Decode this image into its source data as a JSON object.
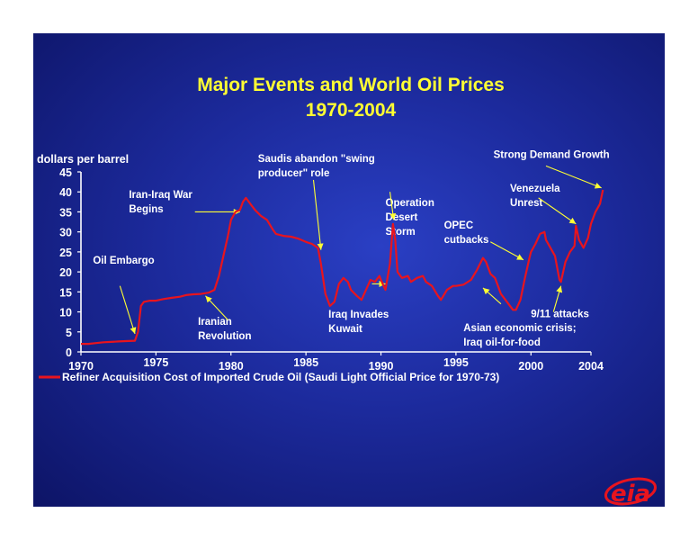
{
  "chart_data": {
    "type": "line",
    "title": "Major Events and World Oil Prices",
    "subtitle": "1970-2004",
    "ylabel": "dollars per barrel",
    "ylim": [
      0,
      45
    ],
    "yticks": [
      "0",
      "5",
      "10",
      "15",
      "20",
      "25",
      "30",
      "35",
      "40",
      "45"
    ],
    "xlim": [
      1970,
      2004
    ],
    "xticks_lower": [
      "1970",
      "1980",
      "1990",
      "2000",
      "2004"
    ],
    "xticks_upper": [
      "1975",
      "1985",
      "1995"
    ],
    "legend_position": "bottom",
    "series": [
      {
        "name": "Refiner Acquisition Cost of Imported Crude Oil (Saudi Light Official Price for 1970-73)",
        "color": "#e8141e",
        "points": [
          [
            1970.0,
            2.0
          ],
          [
            1970.5,
            2.0
          ],
          [
            1971.0,
            2.2
          ],
          [
            1971.5,
            2.4
          ],
          [
            1972.0,
            2.5
          ],
          [
            1972.5,
            2.6
          ],
          [
            1973.0,
            2.7
          ],
          [
            1973.6,
            2.8
          ],
          [
            1973.8,
            5.0
          ],
          [
            1974.0,
            11.5
          ],
          [
            1974.2,
            12.5
          ],
          [
            1974.6,
            12.8
          ],
          [
            1975.0,
            12.8
          ],
          [
            1975.5,
            13.2
          ],
          [
            1976.0,
            13.5
          ],
          [
            1976.6,
            13.8
          ],
          [
            1977.0,
            14.2
          ],
          [
            1977.5,
            14.4
          ],
          [
            1978.0,
            14.5
          ],
          [
            1978.5,
            14.8
          ],
          [
            1978.9,
            15.5
          ],
          [
            1979.2,
            19.0
          ],
          [
            1979.5,
            24.0
          ],
          [
            1979.8,
            29.0
          ],
          [
            1980.0,
            33.0
          ],
          [
            1980.3,
            35.0
          ],
          [
            1980.6,
            35.5
          ],
          [
            1980.8,
            37.5
          ],
          [
            1981.0,
            38.5
          ],
          [
            1981.3,
            37.0
          ],
          [
            1981.6,
            35.5
          ],
          [
            1982.0,
            34.0
          ],
          [
            1982.4,
            33.0
          ],
          [
            1982.8,
            30.5
          ],
          [
            1983.0,
            29.5
          ],
          [
            1983.5,
            29.0
          ],
          [
            1984.0,
            28.8
          ],
          [
            1984.5,
            28.3
          ],
          [
            1985.0,
            27.5
          ],
          [
            1985.4,
            27.0
          ],
          [
            1985.8,
            26.0
          ],
          [
            1986.0,
            22.0
          ],
          [
            1986.3,
            14.5
          ],
          [
            1986.6,
            11.5
          ],
          [
            1986.9,
            12.5
          ],
          [
            1987.2,
            17.0
          ],
          [
            1987.5,
            18.5
          ],
          [
            1987.8,
            17.5
          ],
          [
            1988.0,
            15.5
          ],
          [
            1988.4,
            14.0
          ],
          [
            1988.7,
            13.0
          ],
          [
            1989.0,
            15.5
          ],
          [
            1989.3,
            18.0
          ],
          [
            1989.6,
            17.5
          ],
          [
            1989.9,
            19.0
          ],
          [
            1990.0,
            18.0
          ],
          [
            1990.3,
            15.5
          ],
          [
            1990.6,
            22.0
          ],
          [
            1990.8,
            32.0
          ],
          [
            1990.95,
            28.0
          ],
          [
            1991.1,
            20.0
          ],
          [
            1991.4,
            18.5
          ],
          [
            1991.8,
            19.0
          ],
          [
            1992.0,
            17.5
          ],
          [
            1992.4,
            18.5
          ],
          [
            1992.8,
            19.0
          ],
          [
            1993.0,
            17.5
          ],
          [
            1993.4,
            16.5
          ],
          [
            1993.8,
            14.0
          ],
          [
            1994.0,
            13.0
          ],
          [
            1994.4,
            15.5
          ],
          [
            1994.8,
            16.5
          ],
          [
            1995.0,
            16.5
          ],
          [
            1995.5,
            16.8
          ],
          [
            1996.0,
            18.0
          ],
          [
            1996.4,
            20.5
          ],
          [
            1996.8,
            23.5
          ],
          [
            1997.0,
            22.5
          ],
          [
            1997.3,
            19.5
          ],
          [
            1997.6,
            18.5
          ],
          [
            1998.0,
            14.5
          ],
          [
            1998.4,
            12.5
          ],
          [
            1998.8,
            10.5
          ],
          [
            1999.0,
            10.5
          ],
          [
            1999.3,
            13.0
          ],
          [
            1999.6,
            18.5
          ],
          [
            1999.9,
            23.5
          ],
          [
            2000.0,
            25.0
          ],
          [
            2000.3,
            27.0
          ],
          [
            2000.6,
            29.5
          ],
          [
            2000.9,
            30.0
          ],
          [
            2001.0,
            28.0
          ],
          [
            2001.3,
            26.0
          ],
          [
            2001.6,
            24.0
          ],
          [
            2001.9,
            18.0
          ],
          [
            2002.0,
            17.5
          ],
          [
            2002.3,
            22.5
          ],
          [
            2002.6,
            25.0
          ],
          [
            2002.9,
            26.5
          ],
          [
            2003.0,
            31.5
          ],
          [
            2003.2,
            28.0
          ],
          [
            2003.5,
            26.0
          ],
          [
            2003.8,
            28.5
          ],
          [
            2004.0,
            32.0
          ],
          [
            2004.3,
            35.0
          ],
          [
            2004.6,
            37.0
          ],
          [
            2004.8,
            40.5
          ]
        ]
      }
    ],
    "annotations": [
      {
        "lines": [
          "Oil Embargo"
        ],
        "tx": 1970.8,
        "ty": 22.0,
        "ax": 1972.6,
        "ay": 16.5,
        "bx": 1973.6,
        "by": 4.5
      },
      {
        "lines": [
          "Iran-Iraq War",
          "Begins"
        ],
        "tx": 1973.2,
        "ty": 38.5,
        "ax": 1977.6,
        "ay": 35.0,
        "bx": 1980.6,
        "by": 35.0
      },
      {
        "lines": [
          "Iranian",
          "Revolution"
        ],
        "tx": 1977.8,
        "ty": 6.8,
        "ax": 1979.8,
        "ay": 8.0,
        "bx": 1978.3,
        "by": 14.0
      },
      {
        "lines": [
          "Saudis abandon \"swing",
          "producer\" role"
        ],
        "tx": 1981.8,
        "ty": 47.5,
        "ax": 1985.5,
        "ay": 43.0,
        "bx": 1986.0,
        "by": 25.5
      },
      {
        "lines": [
          "Iraq Invades",
          "Kuwait"
        ],
        "tx": 1986.5,
        "ty": 8.5,
        "ax": 1989.4,
        "ay": 17.0,
        "bx": 1990.3,
        "by": 17.0
      },
      {
        "lines": [
          "Operation",
          "Desert",
          "Storm"
        ],
        "tx": 1990.3,
        "ty": 36.5,
        "ax": 1990.6,
        "ay": 40.0,
        "bx": 1990.85,
        "by": 33.0
      },
      {
        "lines": [
          "OPEC",
          "cutbacks"
        ],
        "tx": 1994.2,
        "ty": 30.8,
        "ax": 1997.3,
        "ay": 27.5,
        "bx": 1999.5,
        "by": 23.0
      },
      {
        "lines": [
          "Asian economic crisis;",
          "Iraq oil-for-food"
        ],
        "tx": 1995.5,
        "ty": 5.2,
        "ax": 1998.0,
        "ay": 12.0,
        "bx": 1996.8,
        "by": 16.0
      },
      {
        "lines": [
          "Strong Demand Growth"
        ],
        "tx": 1997.5,
        "ty": 48.5,
        "ax": 2001.0,
        "ay": 46.5,
        "bx": 2004.7,
        "by": 41.0
      },
      {
        "lines": [
          "Venezuela",
          "Unrest"
        ],
        "tx": 1998.6,
        "ty": 40.0,
        "ax": 2000.5,
        "ay": 38.5,
        "bx": 2003.0,
        "by": 32.0
      },
      {
        "lines": [
          "9/11 attacks"
        ],
        "tx": 2000.0,
        "ty": 8.7,
        "ax": 2001.5,
        "ay": 10.0,
        "bx": 2002.0,
        "by": 16.5
      }
    ]
  },
  "logo": {
    "text": "eia",
    "color": "#e8141e"
  }
}
